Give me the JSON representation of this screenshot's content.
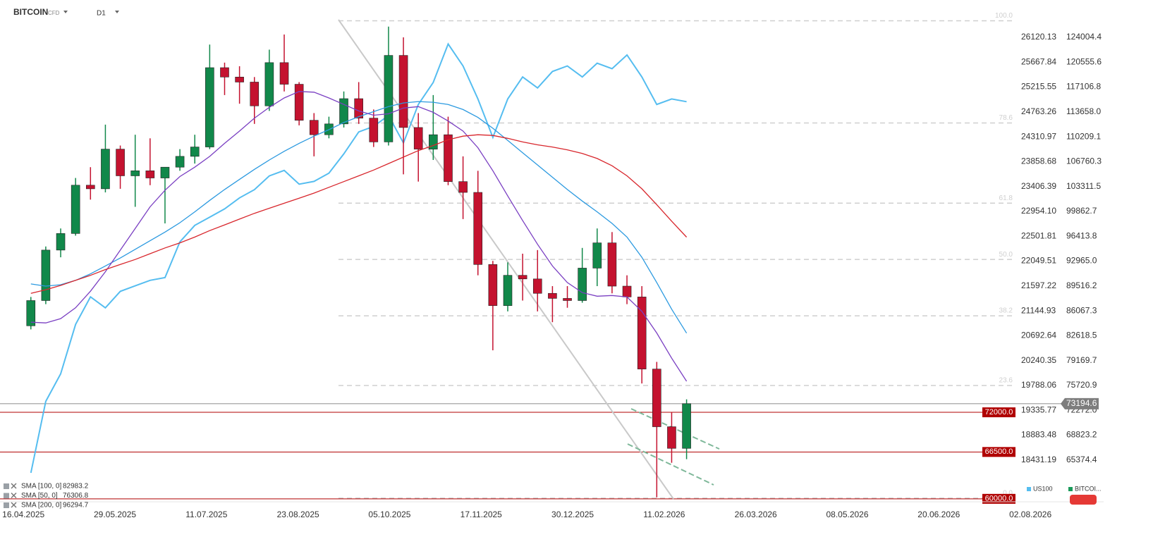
{
  "chart_data": {
    "type": "candlestick",
    "title": "BITCOIN",
    "subtitle": "CFD",
    "timeframe": "D1",
    "x": [
      "16.04.2025",
      "23.04.2025",
      "30.04.2025",
      "07.05.2025",
      "14.05.2025",
      "21.05.2025",
      "28.05.2025",
      "04.06.2025",
      "11.06.2025",
      "18.06.2025",
      "25.06.2025",
      "02.07.2025",
      "09.07.2025",
      "16.07.2025",
      "23.07.2025",
      "30.07.2025",
      "06.08.2025",
      "13.08.2025",
      "20.08.2025",
      "27.08.2025",
      "03.09.2025",
      "10.09.2025",
      "17.09.2025",
      "24.09.2025",
      "01.10.2025",
      "08.10.2025",
      "15.10.2025",
      "22.10.2025",
      "29.10.2025",
      "05.11.2025",
      "12.11.2025",
      "19.11.2025",
      "26.11.2025",
      "03.12.2025",
      "10.12.2025",
      "17.12.2025",
      "24.12.2025",
      "31.12.2025",
      "07.01.2026",
      "14.01.2026",
      "21.01.2026",
      "28.01.2026",
      "04.02.2026",
      "11.02.2026",
      "18.02.2026"
    ],
    "xlim": [
      "05.04.2025",
      "26.07.2026"
    ],
    "xticks": [
      "16.04.2025",
      "29.05.2025",
      "11.07.2025",
      "23.08.2025",
      "05.10.2025",
      "17.11.2025",
      "30.12.2025",
      "11.02.2026",
      "26.03.2026",
      "08.05.2026",
      "20.06.2026",
      "02.08.2026"
    ],
    "series": [
      {
        "name": "BITCOIN",
        "legend_label": "BITCOI...",
        "up_color": "#11884a",
        "down_color": "#c4122f",
        "legend_color": "#1a9a5a",
        "open": [
          84000,
          87500,
          94500,
          96800,
          103500,
          103000,
          108500,
          104800,
          105500,
          104500,
          106000,
          107500,
          108800,
          119800,
          118500,
          117800,
          114500,
          120500,
          117500,
          112500,
          110500,
          112000,
          115500,
          112800,
          109500,
          121500,
          111500,
          108500,
          110500,
          104000,
          102500,
          92500,
          86800,
          91000,
          90500,
          88500,
          87800,
          87500,
          92000,
          95500,
          89500,
          88000,
          78000,
          70000,
          67000
        ],
        "high": [
          88000,
          95000,
          97500,
          104500,
          106000,
          111900,
          109000,
          110500,
          110000,
          106000,
          108500,
          110500,
          123000,
          120500,
          120000,
          118500,
          122300,
          124400,
          117800,
          113500,
          113000,
          116500,
          117800,
          114000,
          125500,
          124000,
          113500,
          116000,
          113000,
          107500,
          105500,
          93000,
          92800,
          94000,
          94500,
          89500,
          89500,
          94800,
          97500,
          97000,
          91000,
          89500,
          79000,
          72000,
          73800
        ],
        "low": [
          83500,
          87000,
          93500,
          96500,
          101500,
          102500,
          103000,
          100500,
          103500,
          98200,
          105500,
          106500,
          108500,
          116000,
          114800,
          112000,
          113800,
          116500,
          111800,
          107500,
          110000,
          111500,
          112000,
          108800,
          109000,
          105000,
          104000,
          107000,
          103500,
          98800,
          91000,
          80600,
          86000,
          87500,
          86000,
          84500,
          86500,
          87200,
          89500,
          88500,
          87000,
          76000,
          60200,
          65000,
          65500
        ],
        "close": [
          87500,
          94500,
          96800,
          103500,
          103000,
          108500,
          104800,
          105500,
          104500,
          106000,
          107500,
          108800,
          119800,
          118500,
          117800,
          114500,
          120500,
          117500,
          112500,
          110500,
          112000,
          115500,
          112800,
          109500,
          121500,
          111500,
          108500,
          110500,
          104000,
          102500,
          92500,
          86800,
          91000,
          90500,
          88500,
          87800,
          87500,
          92000,
          95500,
          89500,
          88000,
          78000,
          70000,
          67000,
          73194.6
        ]
      },
      {
        "name": "US100",
        "type": "line",
        "axis": "y2",
        "color": "#55bdf0",
        "values": [
          18200,
          19500,
          20000,
          20900,
          21400,
          21200,
          21500,
          21600,
          21700,
          21750,
          22400,
          22700,
          22850,
          23000,
          23200,
          23350,
          23600,
          23700,
          23450,
          23500,
          23650,
          24000,
          24400,
          24500,
          24700,
          24200,
          24900,
          25300,
          26000,
          25600,
          25000,
          24300,
          25000,
          25400,
          25200,
          25500,
          25600,
          25400,
          25650,
          25550,
          25800,
          25400,
          24900,
          25000,
          24950
        ]
      },
      {
        "name": "SMA [100, 0]",
        "type": "line",
        "color": "#2c9ae0",
        "values": [
          89800,
          89500,
          89700,
          90300,
          91200,
          92300,
          93400,
          94600,
          95800,
          97000,
          98300,
          99800,
          101400,
          102900,
          104300,
          105700,
          107000,
          108200,
          109300,
          110300,
          111200,
          112200,
          113000,
          113700,
          114400,
          114900,
          115100,
          115000,
          114700,
          114000,
          112900,
          111400,
          109700,
          108000,
          106300,
          104600,
          102900,
          101300,
          99800,
          98200,
          96300,
          93500,
          90000,
          86300,
          82983.2
        ]
      },
      {
        "name": "SMA [50, 0]",
        "type": "line",
        "color": "#7a3fc2",
        "values": [
          84500,
          84400,
          85000,
          86500,
          88800,
          91500,
          94500,
          97500,
          100500,
          102800,
          104700,
          106000,
          107500,
          109300,
          111000,
          112800,
          114300,
          115600,
          116500,
          116400,
          115600,
          114700,
          113800,
          113200,
          113400,
          114200,
          114400,
          113600,
          112400,
          111000,
          108700,
          105500,
          102000,
          98600,
          95300,
          92300,
          90000,
          88600,
          88100,
          88200,
          88000,
          86000,
          83000,
          79500,
          76306.8
        ]
      },
      {
        "name": "SMA [200, 0]",
        "type": "line",
        "color": "#d8262c",
        "values": [
          88500,
          89000,
          89600,
          90300,
          91000,
          91800,
          92500,
          93200,
          94000,
          94800,
          95500,
          96300,
          97200,
          98000,
          98800,
          99600,
          100300,
          101000,
          101700,
          102400,
          103200,
          104000,
          104800,
          105600,
          106500,
          107400,
          108300,
          109000,
          109800,
          110300,
          110500,
          110400,
          110000,
          109500,
          109100,
          108800,
          108400,
          107900,
          107200,
          106200,
          104800,
          103000,
          100800,
          98500,
          96294.7
        ]
      }
    ],
    "ylim": [
      59592,
      127230
    ],
    "yticks": [
      124004.4,
      120555.6,
      117106.8,
      {
        "value": 113658.0,
        "label": "113658.0"
      },
      110209.1,
      106760.3,
      103311.5,
      99862.7,
      96413.8,
      {
        "value": 92965.0,
        "label": "92965.0"
      },
      89516.2,
      86067.3,
      82618.5,
      79169.7,
      75720.9,
      {
        "value": 72272.0,
        "label": "72272.0"
      },
      68823.2,
      65374.4
    ],
    "y2lim": [
      17673.1,
      26543.1
    ],
    "y2ticks": [
      26120.13,
      25667.84,
      25215.55,
      24763.26,
      24310.97,
      23858.68,
      23406.39,
      {
        "value": 22954.1,
        "label": "22954.10"
      },
      22501.81,
      22049.51,
      21597.22,
      21144.93,
      20692.64,
      20240.35,
      19788.06,
      19335.77,
      18883.48,
      18431.19
    ],
    "levels": [
      {
        "value": 72000,
        "label": "72000.0",
        "color": "#b00000"
      },
      {
        "value": 66500,
        "label": "66500.0",
        "color": "#b00000"
      },
      {
        "value": 60000,
        "label": "60000.0",
        "color": "#b00000"
      }
    ],
    "fibonacci": {
      "high": 126300,
      "low": 60100,
      "color": "#cfcfcf",
      "levels": [
        {
          "value": 100,
          "label": "100.0"
        },
        78.6,
        61.8,
        {
          "value": 50,
          "label": "50.0"
        },
        38.2,
        23.6,
        {
          "value": 0,
          "label": "0.0"
        }
      ]
    }
  }
}
